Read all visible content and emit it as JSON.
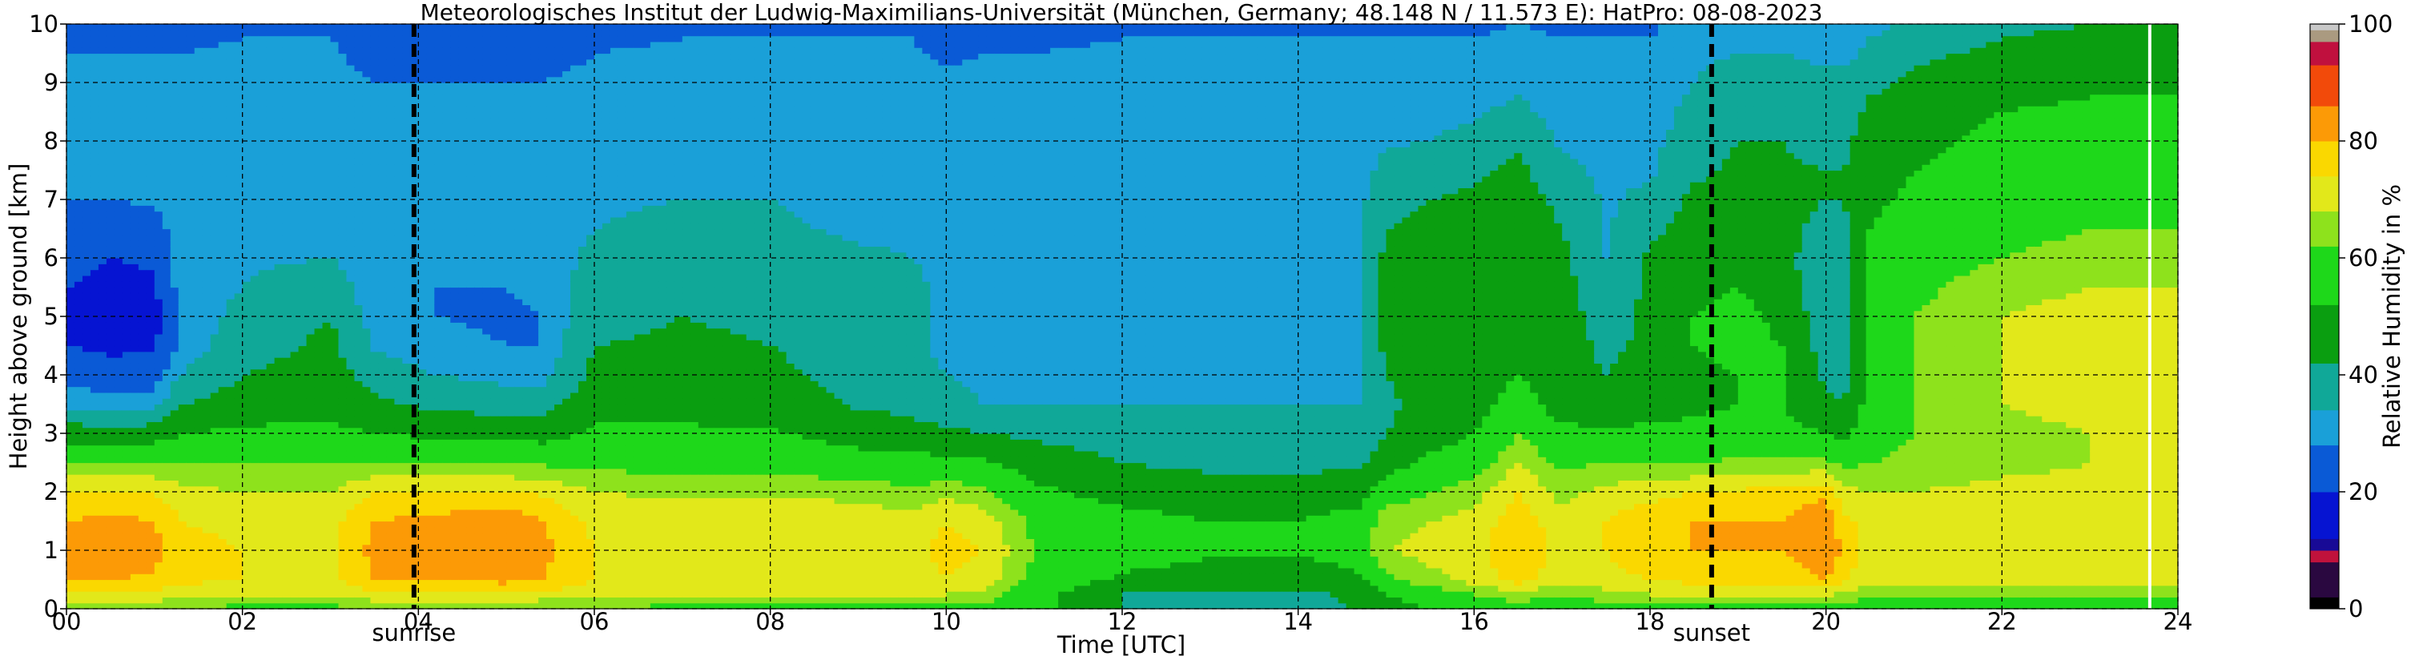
{
  "chart_data": {
    "type": "heatmap",
    "title": "Meteorologisches Institut der Ludwig-Maximilians-Universität (München, Germany; 48.148 N / 11.573 E):    HatPro: 08-08-2023",
    "xlabel": "Time [UTC]",
    "ylabel": "Height above ground [km]",
    "xlim": [
      0,
      24
    ],
    "ylim": [
      0,
      10
    ],
    "x_ticks": [
      "00",
      "02",
      "04",
      "06",
      "08",
      "10",
      "12",
      "14",
      "16",
      "18",
      "20",
      "22",
      "24"
    ],
    "y_ticks": [
      "0",
      "1",
      "2",
      "3",
      "4",
      "5",
      "6",
      "7",
      "8",
      "9",
      "10"
    ],
    "grid": true,
    "markers": [
      {
        "label": "sunrise",
        "time": 3.95
      },
      {
        "label": "sunset",
        "time": 18.7
      }
    ],
    "colorbar": {
      "label": "Relative Humidity in %",
      "ticks": [
        "0",
        "20",
        "40",
        "60",
        "80",
        "100"
      ],
      "range": [
        0,
        100
      ],
      "bands": [
        {
          "from": 0,
          "to": 2,
          "color": "#000000"
        },
        {
          "from": 2,
          "to": 8,
          "color": "#2a0840"
        },
        {
          "from": 8,
          "to": 10,
          "color": "#c0123c"
        },
        {
          "from": 10,
          "to": 12,
          "color": "#180a96"
        },
        {
          "from": 12,
          "to": 20,
          "color": "#0614d2"
        },
        {
          "from": 20,
          "to": 28,
          "color": "#0a5ad6"
        },
        {
          "from": 28,
          "to": 34,
          "color": "#1aa0d8"
        },
        {
          "from": 34,
          "to": 42,
          "color": "#10a898"
        },
        {
          "from": 42,
          "to": 52,
          "color": "#0a9e10"
        },
        {
          "from": 52,
          "to": 62,
          "color": "#1ed81a"
        },
        {
          "from": 62,
          "to": 68,
          "color": "#8ee21c"
        },
        {
          "from": 68,
          "to": 74,
          "color": "#e2e81a"
        },
        {
          "from": 74,
          "to": 80,
          "color": "#fad800"
        },
        {
          "from": 80,
          "to": 86,
          "color": "#fc9a06"
        },
        {
          "from": 86,
          "to": 93,
          "color": "#f24a0a"
        },
        {
          "from": 93,
          "to": 97,
          "color": "#c0103e"
        },
        {
          "from": 97,
          "to": 99,
          "color": "#aa9a80"
        },
        {
          "from": 99,
          "to": 100,
          "color": "#c8c8c8"
        }
      ]
    },
    "time_x": [
      0,
      0.5,
      1,
      1.3,
      2,
      3,
      3.5,
      4.2,
      5,
      5.4,
      6,
      7,
      8,
      9,
      9.6,
      10,
      10.4,
      11,
      12,
      13,
      14,
      14.7,
      15,
      15.5,
      16,
      16.5,
      17,
      17.5,
      18,
      18.5,
      19,
      19.5,
      20,
      20.2,
      20.5,
      21,
      22,
      23,
      23.6,
      24
    ],
    "profile_heights_km": [
      0,
      0.25,
      0.5,
      1,
      1.5,
      2,
      2.5,
      3,
      3.5,
      4,
      4.5,
      5,
      5.5,
      6,
      6.5,
      7,
      7.5,
      8,
      8.5,
      9,
      9.5,
      10
    ],
    "rh_profiles": [
      [
        63,
        72,
        80,
        82,
        80,
        75,
        62,
        47,
        32,
        26,
        20,
        18,
        20,
        22,
        26,
        28,
        30,
        30,
        30,
        30,
        28,
        24
      ],
      [
        63,
        72,
        80,
        84,
        82,
        75,
        62,
        46,
        30,
        24,
        18,
        16,
        18,
        20,
        24,
        28,
        30,
        30,
        30,
        30,
        28,
        24
      ],
      [
        63,
        72,
        79,
        82,
        80,
        74,
        62,
        47,
        31,
        25,
        19,
        17,
        19,
        21,
        25,
        29,
        30,
        30,
        30,
        30,
        28,
        25
      ],
      [
        62,
        70,
        76,
        77,
        74,
        70,
        62,
        52,
        42,
        34,
        30,
        30,
        31,
        32,
        32,
        32,
        32,
        31,
        31,
        30,
        28,
        26
      ],
      [
        60,
        68,
        74,
        74,
        72,
        68,
        62,
        54,
        46,
        42,
        38,
        36,
        34,
        33,
        33,
        33,
        32,
        32,
        31,
        31,
        29,
        27
      ],
      [
        60,
        68,
        73,
        73,
        72,
        68,
        62,
        55,
        48,
        46,
        44,
        42,
        38,
        34,
        33,
        33,
        32,
        32,
        31,
        31,
        29,
        27
      ],
      [
        62,
        72,
        80,
        82,
        80,
        74,
        62,
        52,
        44,
        38,
        33,
        31,
        30,
        30,
        30,
        30,
        30,
        29,
        29,
        28,
        25,
        22
      ],
      [
        62,
        72,
        80,
        84,
        82,
        74,
        62,
        50,
        40,
        34,
        30,
        28,
        28,
        29,
        30,
        30,
        30,
        29,
        29,
        28,
        24,
        20
      ],
      [
        62,
        73,
        82,
        86,
        84,
        75,
        62,
        49,
        38,
        32,
        28,
        27,
        28,
        29,
        30,
        30,
        30,
        29,
        29,
        28,
        24,
        20
      ],
      [
        62,
        72,
        80,
        82,
        80,
        73,
        61,
        48,
        38,
        32,
        28,
        28,
        29,
        30,
        30,
        30,
        30,
        30,
        29,
        28,
        25,
        22
      ],
      [
        61,
        70,
        74,
        74,
        72,
        68,
        60,
        54,
        48,
        44,
        42,
        40,
        38,
        36,
        34,
        33,
        32,
        31,
        31,
        30,
        28,
        26
      ],
      [
        60,
        68,
        73,
        73,
        71,
        67,
        59,
        54,
        48,
        45,
        43,
        42,
        40,
        38,
        36,
        34,
        33,
        32,
        31,
        30,
        29,
        27
      ],
      [
        60,
        68,
        73,
        74,
        72,
        67,
        59,
        53,
        47,
        44,
        42,
        41,
        39,
        37,
        35,
        34,
        33,
        32,
        31,
        31,
        29,
        27
      ],
      [
        60,
        68,
        73,
        74,
        72,
        66,
        56,
        48,
        41,
        39,
        38,
        38,
        37,
        35,
        33,
        32,
        32,
        31,
        31,
        30,
        29,
        27
      ],
      [
        60,
        68,
        72,
        72,
        70,
        64,
        55,
        46,
        39,
        36,
        35,
        35,
        35,
        34,
        33,
        32,
        32,
        31,
        31,
        30,
        29,
        27
      ],
      [
        60,
        68,
        74,
        76,
        74,
        66,
        55,
        44,
        36,
        34,
        33,
        33,
        33,
        33,
        32,
        32,
        31,
        31,
        30,
        29,
        27,
        24
      ],
      [
        60,
        66,
        72,
        74,
        72,
        64,
        54,
        42,
        34,
        33,
        33,
        33,
        33,
        33,
        32,
        32,
        31,
        31,
        30,
        30,
        28,
        26
      ],
      [
        56,
        56,
        60,
        62,
        60,
        54,
        48,
        40,
        34,
        33,
        33,
        33,
        33,
        33,
        32,
        32,
        32,
        31,
        31,
        30,
        28,
        26
      ],
      [
        42,
        42,
        50,
        58,
        56,
        48,
        42,
        37,
        34,
        33,
        33,
        33,
        33,
        33,
        32,
        32,
        32,
        31,
        31,
        30,
        29,
        27
      ],
      [
        40,
        40,
        46,
        54,
        52,
        46,
        40,
        36,
        34,
        33,
        33,
        33,
        33,
        33,
        33,
        32,
        32,
        31,
        31,
        30,
        29,
        27
      ],
      [
        40,
        40,
        45,
        53,
        52,
        46,
        40,
        36,
        34,
        33,
        33,
        33,
        33,
        33,
        33,
        32,
        32,
        31,
        31,
        30,
        29,
        27
      ],
      [
        42,
        44,
        50,
        58,
        56,
        48,
        40,
        36,
        34,
        34,
        34,
        34,
        33,
        33,
        33,
        32,
        32,
        31,
        31,
        30,
        29,
        27
      ],
      [
        48,
        52,
        60,
        68,
        66,
        58,
        48,
        42,
        40,
        42,
        44,
        44,
        44,
        44,
        42,
        40,
        36,
        33,
        31,
        30,
        29,
        27
      ],
      [
        52,
        58,
        66,
        70,
        68,
        62,
        54,
        48,
        46,
        47,
        48,
        47,
        46,
        46,
        44,
        42,
        38,
        34,
        32,
        30,
        29,
        27
      ],
      [
        54,
        62,
        70,
        72,
        70,
        66,
        58,
        52,
        48,
        48,
        49,
        48,
        47,
        46,
        45,
        44,
        40,
        36,
        33,
        31,
        29,
        27
      ],
      [
        58,
        66,
        76,
        80,
        78,
        74,
        68,
        62,
        56,
        52,
        50,
        48,
        48,
        47,
        47,
        46,
        44,
        40,
        36,
        32,
        30,
        28
      ],
      [
        56,
        62,
        70,
        72,
        70,
        66,
        60,
        54,
        48,
        47,
        46,
        46,
        45,
        44,
        42,
        40,
        36,
        33,
        31,
        30,
        29,
        27
      ],
      [
        58,
        66,
        72,
        74,
        74,
        70,
        62,
        54,
        46,
        42,
        40,
        38,
        36,
        34,
        33,
        33,
        32,
        32,
        31,
        30,
        29,
        27
      ],
      [
        60,
        68,
        74,
        78,
        78,
        72,
        62,
        54,
        48,
        46,
        44,
        44,
        44,
        44,
        40,
        36,
        33,
        32,
        31,
        30,
        29,
        27
      ],
      [
        60,
        68,
        76,
        80,
        80,
        74,
        62,
        55,
        50,
        50,
        52,
        52,
        50,
        48,
        46,
        44,
        40,
        38,
        36,
        34,
        32,
        30
      ],
      [
        60,
        68,
        76,
        80,
        80,
        75,
        63,
        56,
        52,
        52,
        54,
        55,
        52,
        48,
        46,
        45,
        44,
        42,
        40,
        38,
        34,
        30
      ],
      [
        60,
        68,
        76,
        80,
        80,
        76,
        64,
        56,
        52,
        52,
        52,
        50,
        46,
        44,
        44,
        44,
        43,
        42,
        40,
        38,
        34,
        30
      ],
      [
        60,
        70,
        80,
        86,
        86,
        78,
        64,
        52,
        44,
        40,
        38,
        36,
        36,
        38,
        40,
        42,
        42,
        40,
        38,
        36,
        32,
        28
      ],
      [
        58,
        66,
        74,
        78,
        76,
        70,
        60,
        50,
        42,
        38,
        36,
        36,
        36,
        38,
        40,
        42,
        42,
        40,
        38,
        36,
        32,
        28
      ],
      [
        58,
        64,
        70,
        72,
        72,
        68,
        62,
        58,
        56,
        56,
        56,
        55,
        54,
        54,
        52,
        50,
        48,
        46,
        44,
        40,
        36,
        32
      ],
      [
        58,
        64,
        70,
        72,
        72,
        68,
        64,
        62,
        62,
        62,
        62,
        62,
        60,
        58,
        56,
        54,
        52,
        50,
        48,
        44,
        40,
        36
      ],
      [
        58,
        64,
        70,
        72,
        72,
        70,
        66,
        66,
        68,
        68,
        68,
        68,
        66,
        62,
        60,
        58,
        56,
        54,
        52,
        48,
        44,
        40
      ],
      [
        58,
        64,
        70,
        72,
        72,
        70,
        68,
        68,
        70,
        70,
        70,
        70,
        68,
        64,
        62,
        60,
        58,
        56,
        54,
        50,
        46,
        42
      ],
      [
        58,
        64,
        70,
        72,
        72,
        70,
        68,
        68,
        70,
        70,
        70,
        70,
        68,
        64,
        62,
        60,
        58,
        56,
        54,
        50,
        46,
        42
      ],
      [
        58,
        64,
        70,
        72,
        72,
        70,
        68,
        68,
        70,
        70,
        70,
        70,
        68,
        64,
        62,
        60,
        58,
        56,
        54,
        50,
        46,
        42
      ]
    ],
    "data_gaps_hours": [
      23.68
    ]
  }
}
